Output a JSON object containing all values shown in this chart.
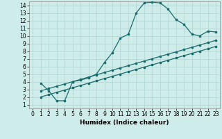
{
  "title": "",
  "xlabel": "Humidex (Indice chaleur)",
  "background_color": "#ceecea",
  "grid_color": "#b8dbd8",
  "line_color": "#1a6b6b",
  "xlim": [
    -0.5,
    23.5
  ],
  "ylim": [
    0.5,
    14.5
  ],
  "xticks": [
    0,
    1,
    2,
    3,
    4,
    5,
    6,
    7,
    8,
    9,
    10,
    11,
    12,
    13,
    14,
    15,
    16,
    17,
    18,
    19,
    20,
    21,
    22,
    23
  ],
  "yticks": [
    1,
    2,
    3,
    4,
    5,
    6,
    7,
    8,
    9,
    10,
    11,
    12,
    13,
    14
  ],
  "curve1_x": [
    1,
    2,
    3,
    4,
    5,
    6,
    7,
    8,
    9,
    10,
    11,
    12,
    13,
    14,
    15,
    16,
    17,
    18,
    19,
    20,
    21,
    22,
    23
  ],
  "curve1_y": [
    3.8,
    2.8,
    1.5,
    1.5,
    4.0,
    4.2,
    4.5,
    5.0,
    6.5,
    7.8,
    9.7,
    10.2,
    13.0,
    14.3,
    14.4,
    14.3,
    13.5,
    12.1,
    11.5,
    10.2,
    10.0,
    10.6,
    10.5
  ],
  "line1_x": [
    1,
    2,
    3,
    4,
    5,
    6,
    7,
    8,
    9,
    10,
    11,
    12,
    13,
    14,
    15,
    16,
    17,
    18,
    19,
    20,
    21,
    22,
    23
  ],
  "line1_y": [
    2.0,
    2.3,
    2.6,
    2.9,
    3.2,
    3.5,
    3.8,
    4.1,
    4.4,
    4.7,
    5.0,
    5.3,
    5.6,
    5.9,
    6.2,
    6.5,
    6.8,
    7.1,
    7.4,
    7.7,
    8.0,
    8.3,
    8.6
  ],
  "line2_x": [
    1,
    2,
    3,
    4,
    5,
    6,
    7,
    8,
    9,
    10,
    11,
    12,
    13,
    14,
    15,
    16,
    17,
    18,
    19,
    20,
    21,
    22,
    23
  ],
  "line2_y": [
    2.8,
    3.1,
    3.4,
    3.7,
    4.0,
    4.3,
    4.6,
    4.9,
    5.2,
    5.5,
    5.8,
    6.1,
    6.4,
    6.7,
    7.0,
    7.3,
    7.6,
    7.9,
    8.2,
    8.5,
    8.8,
    9.1,
    9.4
  ],
  "tick_fontsize": 5.5,
  "xlabel_fontsize": 6.5
}
